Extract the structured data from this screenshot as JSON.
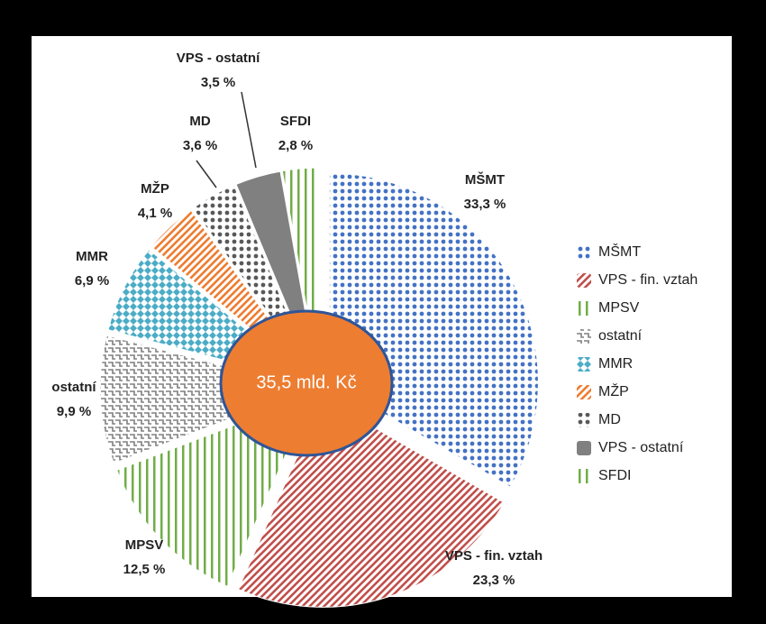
{
  "chart_data": {
    "type": "pie",
    "center_label": "35,5 mld. Kč",
    "categories": [
      "MŠMT",
      "VPS - fin. vztah",
      "MPSV",
      "ostatní",
      "MMR",
      "MŽP",
      "MD",
      "VPS - ostatní",
      "SFDI"
    ],
    "values": [
      33.3,
      23.3,
      12.5,
      9.9,
      6.9,
      4.1,
      3.6,
      3.5,
      2.8
    ],
    "value_labels": [
      "33,3 %",
      "23,3 %",
      "12,5 %",
      "9,9 %",
      "6,9 %",
      "4,1 %",
      "3,6 %",
      "3,5 %",
      "2,8 %"
    ],
    "colors": [
      "#4472c4",
      "#c0504d",
      "#70ad47",
      "#7f7f7f",
      "#4bacc6",
      "#ed7d31",
      "#595959",
      "#808080",
      "#70ad47"
    ],
    "patterns": [
      "dots",
      "diagonal",
      "vertical",
      "checker",
      "diamond",
      "diagonal",
      "dots",
      "solid",
      "vertical"
    ],
    "legend": "right"
  }
}
